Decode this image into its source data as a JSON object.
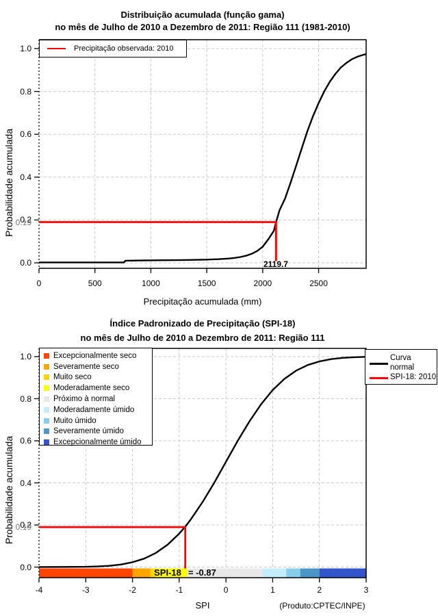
{
  "colors": {
    "accent_red": "#FF0000",
    "curve": "#000000",
    "grid": "#C9C9C9",
    "gray_label": "#787878",
    "box": "#000000"
  },
  "top_chart": {
    "title_line1": "Distribuição acumulada (função gama)",
    "title_line2": "no mês de Julho de 2010 a Dezembro de 2011: Região 111 (1981-2010)",
    "ylabel": "Probabilidade acumulada",
    "xlabel": "Precipitação acumulada (mm)",
    "legend_label": "Precipitação observada: 2010",
    "y_tick_labels": [
      "0.0",
      "0.2",
      "0.4",
      "0.6",
      "0.8",
      "1.0"
    ],
    "x_tick_labels": [
      "0",
      "500",
      "1000",
      "1500",
      "2000",
      "2500"
    ],
    "observed_value_label": "2119.7",
    "prob_label": "0.19"
  },
  "bottom_chart": {
    "title_line1": "Índice Padronizado de Precipitação (SPI-18)",
    "title_line2": "no mês de Julho de 2010 a Dezembro de 2011: Região 111",
    "ylabel": "Probabilidade acumulada",
    "xlabel": "SPI",
    "credit": "(Produto:CPTEC/INPE)",
    "y_tick_labels": [
      "0.0",
      "0.2",
      "0.4",
      "0.6",
      "0.8",
      "1.0"
    ],
    "x_tick_labels": [
      "-4",
      "-3",
      "-2",
      "-1",
      "0",
      "1",
      "2",
      "3"
    ],
    "spi_text": "SPI-18",
    "spi_value_text": "= -0.87",
    "prob_label": "0.19",
    "categories": [
      {
        "label": "Excepcionalmente seco",
        "color": "#FF4500"
      },
      {
        "label": "Severamente seco",
        "color": "#FFA500"
      },
      {
        "label": "Muito seco",
        "color": "#FFD700"
      },
      {
        "label": "Moderadamente seco",
        "color": "#FFFF00"
      },
      {
        "label": "Próximo à normal",
        "color": "#E8E8E8"
      },
      {
        "label": "Moderadamente úmido",
        "color": "#C5ECFA"
      },
      {
        "label": "Muito úmido",
        "color": "#87CEEB"
      },
      {
        "label": "Severamente úmido",
        "color": "#4A96C8"
      },
      {
        "label": "Excepcionalmente úmido",
        "color": "#3355CC"
      }
    ],
    "curve_legend": {
      "line1": "Curva",
      "line2": "normal",
      "spi_entry": "SPI-18: 2010"
    }
  },
  "chart_data": [
    {
      "type": "line",
      "title": "Distribuição acumulada (função gama) no mês de Julho de 2010 a Dezembro de 2011: Região 111 (1981-2010)",
      "xlabel": "Precipitação acumulada (mm)",
      "ylabel": "Probabilidade acumulada",
      "xlim": [
        0,
        2925
      ],
      "ylim": [
        0,
        1
      ],
      "grid": true,
      "x_ticks": [
        0,
        500,
        1000,
        1500,
        2000,
        2500
      ],
      "y_ticks": [
        0,
        0.2,
        0.4,
        0.6,
        0.8,
        1
      ],
      "series": [
        {
          "name": "Distribuição gama acumulada (1981-2010)",
          "color": "#000000",
          "x": [
            0,
            100,
            200,
            300,
            400,
            500,
            600,
            700,
            760,
            772,
            900,
            1100,
            1300,
            1500,
            1600,
            1700,
            1750,
            1800,
            1850,
            1900,
            1950,
            2000,
            2050,
            2100,
            2119.7,
            2150,
            2200,
            2250,
            2300,
            2350,
            2400,
            2450,
            2500,
            2550,
            2600,
            2650,
            2700,
            2750,
            2800,
            2850,
            2900,
            2925
          ],
          "y": [
            0.002,
            0.002,
            0.002,
            0.002,
            0.002,
            0.002,
            0.002,
            0.002,
            0.002,
            0.01,
            0.011,
            0.012,
            0.013,
            0.015,
            0.017,
            0.02,
            0.023,
            0.027,
            0.033,
            0.042,
            0.055,
            0.075,
            0.11,
            0.15,
            0.19,
            0.245,
            0.3,
            0.375,
            0.455,
            0.535,
            0.615,
            0.685,
            0.745,
            0.8,
            0.845,
            0.882,
            0.912,
            0.934,
            0.951,
            0.963,
            0.971,
            0.974
          ]
        }
      ],
      "annotation": {
        "name": "Precipitação observada: 2010",
        "color": "#FF0000",
        "x": 2119.7,
        "y": 0.19,
        "label": "2119.7"
      }
    },
    {
      "type": "line",
      "title": "Índice Padronizado de Precipitação (SPI-18) no mês de Julho de 2010 a Dezembro de 2011: Região 111",
      "xlabel": "SPI",
      "ylabel": "Probabilidade acumulada",
      "xlim": [
        -4,
        3
      ],
      "ylim": [
        0,
        1
      ],
      "grid": true,
      "x_ticks": [
        -4,
        -3,
        -2,
        -1,
        0,
        1,
        2,
        3
      ],
      "y_ticks": [
        0,
        0.2,
        0.4,
        0.6,
        0.8,
        1
      ],
      "series": [
        {
          "name": "Curva normal",
          "color": "#000000",
          "x": [
            -4,
            -3.5,
            -3,
            -2.75,
            -2.5,
            -2.25,
            -2,
            -1.75,
            -1.5,
            -1.25,
            -1,
            -0.87,
            -0.75,
            -0.5,
            -0.25,
            0,
            0.25,
            0.5,
            0.75,
            1,
            1.25,
            1.5,
            1.75,
            2,
            2.25,
            2.5,
            2.75,
            3
          ],
          "y": [
            0.0002,
            0.0006,
            0.0013,
            0.003,
            0.006,
            0.012,
            0.023,
            0.04,
            0.067,
            0.106,
            0.159,
            0.192,
            0.227,
            0.309,
            0.401,
            0.5,
            0.599,
            0.691,
            0.773,
            0.841,
            0.894,
            0.933,
            0.96,
            0.977,
            0.988,
            0.994,
            0.997,
            0.999
          ]
        }
      ],
      "annotation": {
        "name": "SPI-18: 2010",
        "color": "#FF0000",
        "x": -0.87,
        "y": 0.19,
        "label": "SPI-18 = -0.87"
      },
      "category_bar": [
        {
          "from": -4,
          "to": -2.0,
          "color": "#FF4500",
          "label": "Excepcionalmente seco"
        },
        {
          "from": -2.0,
          "to": -1.62,
          "color": "#FFA500",
          "label": "Severamente seco"
        },
        {
          "from": -1.62,
          "to": -1.49,
          "color": "#FFD700",
          "label": "Muito seco"
        },
        {
          "from": -1.49,
          "to": -0.83,
          "color": "#FFFF00",
          "label": "Moderadamente seco"
        },
        {
          "from": -0.83,
          "to": 0.78,
          "color": "#E8E8E8",
          "label": "Próximo à normal"
        },
        {
          "from": 0.78,
          "to": 1.29,
          "color": "#C5ECFA",
          "label": "Moderadamente úmido"
        },
        {
          "from": 1.29,
          "to": 1.59,
          "color": "#87CEEB",
          "label": "Muito úmido"
        },
        {
          "from": 1.59,
          "to": 2.0,
          "color": "#4A96C8",
          "label": "Severamente úmido"
        },
        {
          "from": 2.0,
          "to": 3,
          "color": "#3355CC",
          "label": "Excepcionalmente úmido"
        }
      ]
    }
  ]
}
